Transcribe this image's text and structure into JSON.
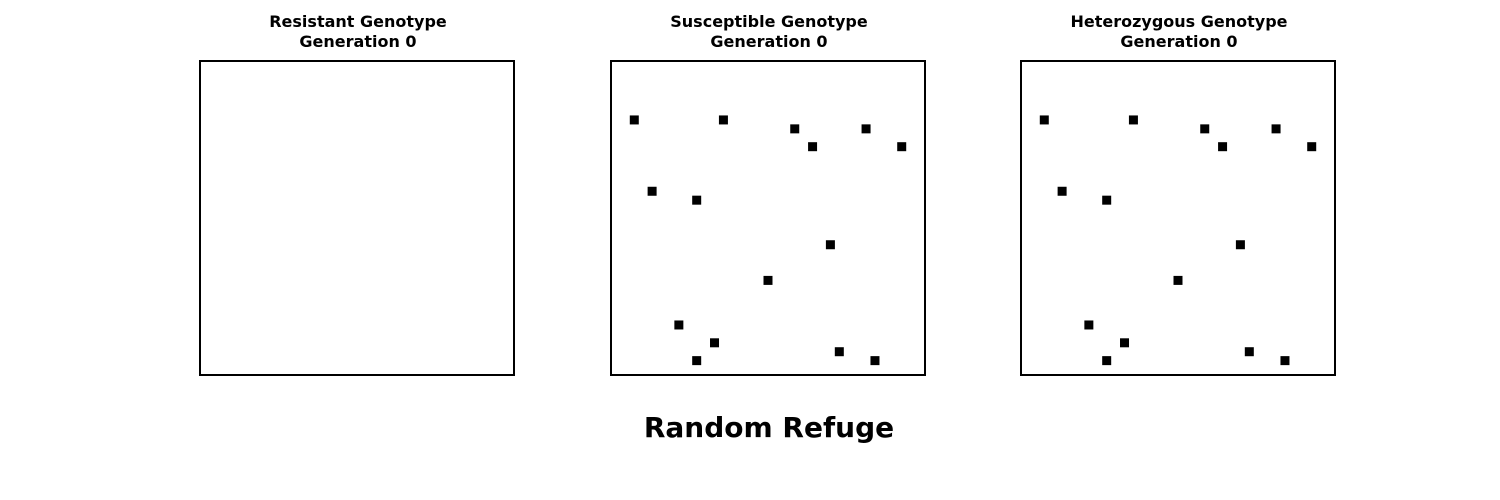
{
  "suptitle": "Random Refuge",
  "chart_data": [
    {
      "type": "scatter",
      "title": "Resistant Genotype",
      "subtitle": "Generation 0",
      "grid_size": [
        35,
        35
      ],
      "points": [],
      "marker_color": "#000000"
    },
    {
      "type": "scatter",
      "title": "Susceptible Genotype",
      "subtitle": "Generation 0",
      "grid_size": [
        35,
        35
      ],
      "points": [
        [
          2,
          6
        ],
        [
          12,
          6
        ],
        [
          20,
          7
        ],
        [
          28,
          7
        ],
        [
          22,
          9
        ],
        [
          32,
          9
        ],
        [
          4,
          14
        ],
        [
          9,
          15
        ],
        [
          24,
          20
        ],
        [
          17,
          24
        ],
        [
          7,
          29
        ],
        [
          11,
          31
        ],
        [
          25,
          32
        ],
        [
          9,
          33
        ],
        [
          29,
          33
        ]
      ],
      "marker_color": "#000000"
    },
    {
      "type": "scatter",
      "title": "Heterozygous Genotype",
      "subtitle": "Generation 0",
      "grid_size": [
        35,
        35
      ],
      "points": [
        [
          2,
          6
        ],
        [
          12,
          6
        ],
        [
          20,
          7
        ],
        [
          28,
          7
        ],
        [
          22,
          9
        ],
        [
          32,
          9
        ],
        [
          4,
          14
        ],
        [
          9,
          15
        ],
        [
          24,
          20
        ],
        [
          17,
          24
        ],
        [
          7,
          29
        ],
        [
          11,
          31
        ],
        [
          25,
          32
        ],
        [
          9,
          33
        ],
        [
          29,
          33
        ]
      ],
      "marker_color": "#000000"
    }
  ]
}
